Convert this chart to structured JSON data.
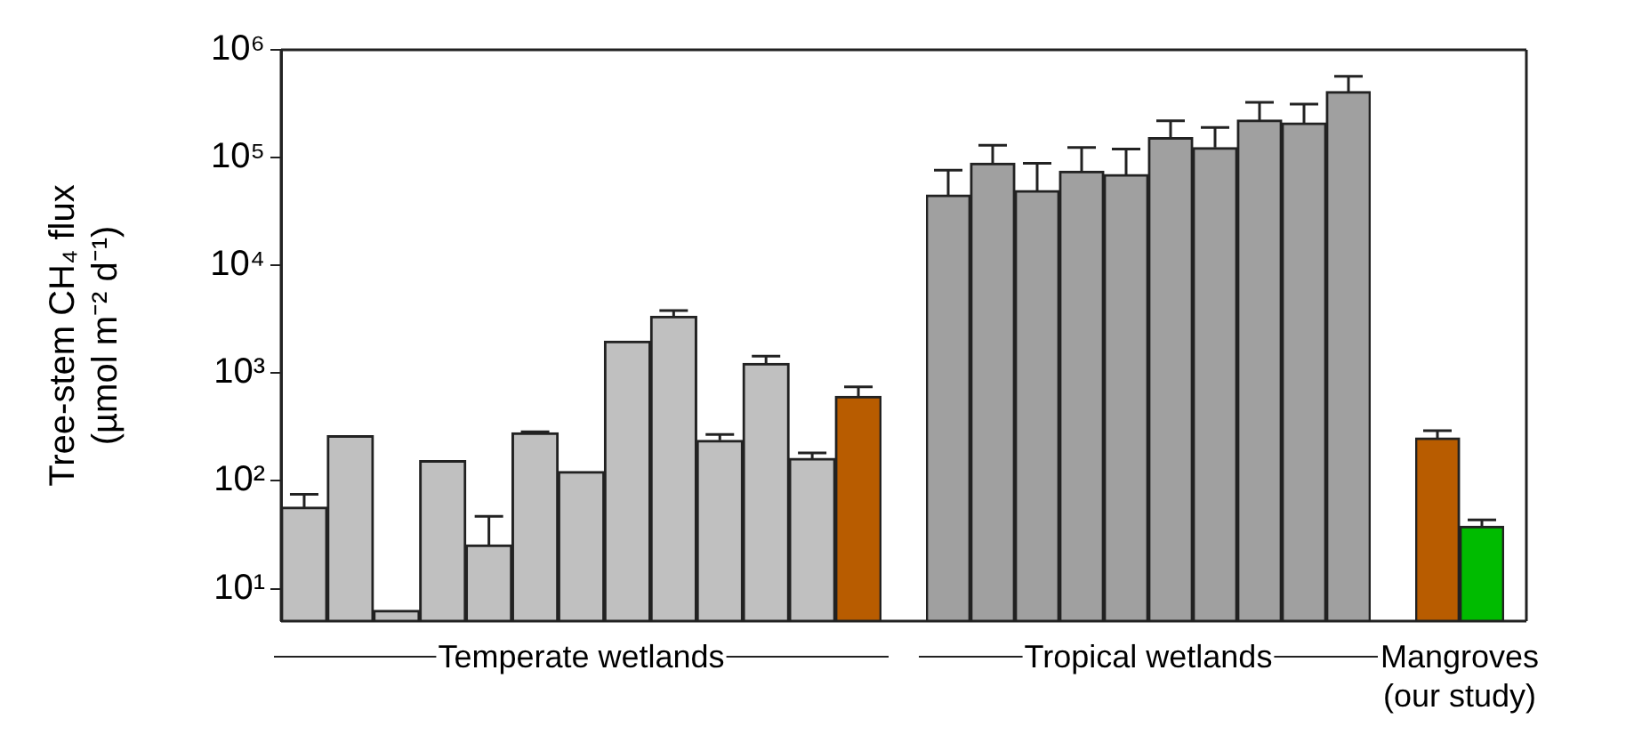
{
  "chart_data": [
    {
      "type": "bar",
      "ylabel": "Tree-stem CH₄ flux (µmol m⁻² d⁻¹)",
      "categories": [
        null,
        null,
        null,
        null,
        null,
        null,
        null,
        null,
        null,
        null,
        null,
        null,
        null
      ],
      "values": [
        57,
        263,
        6.3,
        154,
        25.5,
        279,
        122,
        1980,
        3370,
        238,
        1230,
        162,
        608
      ],
      "errors": [
        [
          57,
          75
        ],
        null,
        null,
        null,
        [
          25.5,
          47
        ],
        [
          279,
          285
        ],
        null,
        null,
        [
          3370,
          3800
        ],
        [
          238,
          270
        ],
        [
          1230,
          1440
        ],
        [
          162,
          182
        ],
        [
          608,
          747
        ]
      ],
      "colors": [
        "#c0c0c0",
        "#c0c0c0",
        "#c0c0c0",
        "#c0c0c0",
        "#c0c0c0",
        "#c0c0c0",
        "#c0c0c0",
        "#c0c0c0",
        "#c0c0c0",
        "#c0c0c0",
        "#c0c0c0",
        "#c0c0c0",
        "#b85c00"
      ],
      "log": true,
      "ylim": [
        5,
        1000000
      ],
      "yticks": [
        {
          "value": 10,
          "label": "10¹"
        },
        {
          "value": 100,
          "label": "10²"
        },
        {
          "value": 1000,
          "label": "10³"
        },
        {
          "value": 10000,
          "label": "10⁴"
        },
        {
          "value": 100000,
          "label": "10⁵"
        },
        {
          "value": 1000000,
          "label": "10⁶"
        }
      ],
      "tick_labels": "y",
      "annotations": [
        "Temperate wetlands"
      ]
    },
    {
      "type": "bar",
      "categories": [
        null,
        null,
        null,
        null,
        null,
        null,
        null,
        null,
        null,
        null
      ],
      "values": [
        44900,
        88500,
        49400,
        74700,
        69500,
        153000,
        124000,
        223000,
        210000,
        409000
      ],
      "errors": [
        [
          44900,
          76600
        ],
        [
          88500,
          130000
        ],
        [
          49400,
          88500
        ],
        [
          74700,
          124000
        ],
        [
          69500,
          120000
        ],
        [
          153000,
          220000
        ],
        [
          124000,
          190000
        ],
        [
          223000,
          325000
        ],
        [
          210000,
          313000
        ],
        [
          409000,
          569000
        ]
      ],
      "colors": [
        "#a0a0a0",
        "#a0a0a0",
        "#a0a0a0",
        "#a0a0a0",
        "#a0a0a0",
        "#a0a0a0",
        "#a0a0a0",
        "#a0a0a0",
        "#a0a0a0",
        "#a0a0a0"
      ],
      "log": true,
      "ylim": [
        5,
        1000000
      ],
      "tick_labels": false,
      "annotations": [
        "Tropical wetlands"
      ]
    },
    {
      "type": "bar",
      "categories": [
        null,
        null
      ],
      "values": [
        250,
        38
      ],
      "errors": [
        [
          250,
          293
        ],
        [
          38,
          43.5
        ]
      ],
      "colors": [
        "#b85c00",
        "#00bb00"
      ],
      "log": true,
      "ylim": [
        5,
        1000000
      ],
      "tick_labels": false,
      "annotations": [
        "Mangroves (our study)"
      ]
    }
  ]
}
